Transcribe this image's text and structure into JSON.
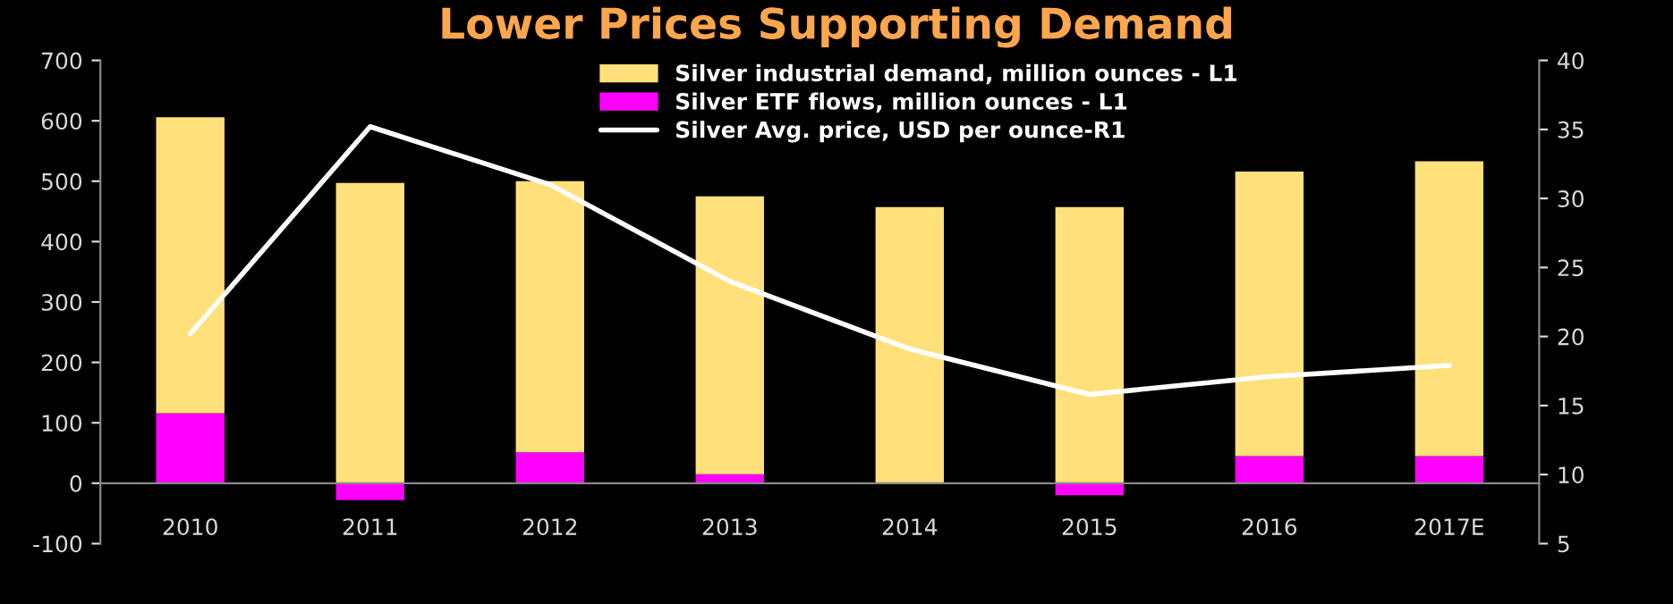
{
  "chart_data": {
    "type": "bar",
    "title": "Lower Prices Supporting Demand",
    "stacked": true,
    "categories": [
      "2010",
      "2011",
      "2012",
      "2013",
      "2014",
      "2015",
      "2016",
      "2017E"
    ],
    "series": [
      {
        "name": "Silver ETF flows, million ounces - L1",
        "color": "#ff00ff",
        "values": [
          116,
          -28,
          51,
          15,
          null,
          -20,
          45,
          45
        ]
      },
      {
        "name": "Silver industrial demand, million ounces - L1",
        "color": "#ffe07a",
        "values": [
          490,
          497,
          449,
          460,
          457,
          457,
          471,
          488
        ]
      },
      {
        "name": "Silver Avg. price, USD per ounce-R1",
        "type": "line",
        "axis": "y2",
        "color": "#ffffff",
        "values": [
          20.2,
          35.2,
          31.0,
          24.0,
          19.1,
          15.8,
          17.1,
          17.9
        ]
      }
    ],
    "ylim": [
      -100,
      700
    ],
    "yticks": [
      -100,
      0,
      100,
      200,
      300,
      400,
      500,
      600,
      700
    ],
    "y2lim": [
      5,
      40
    ],
    "y2ticks": [
      5,
      10,
      15,
      20,
      25,
      30,
      35,
      40
    ],
    "grid": false,
    "legend": "top right",
    "marker": "none",
    "line_style": "solid"
  }
}
